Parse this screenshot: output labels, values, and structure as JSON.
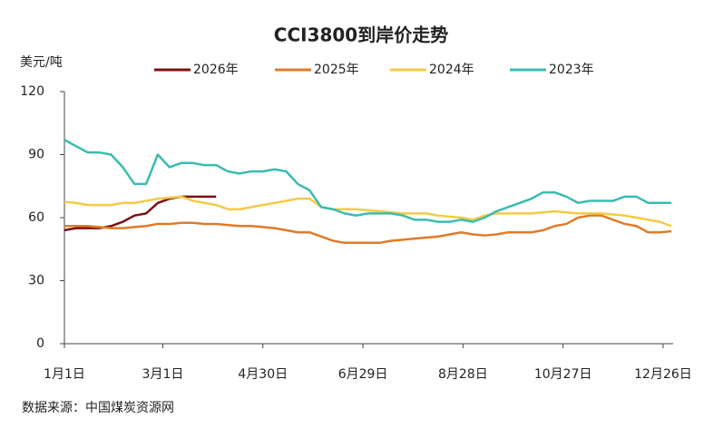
{
  "chart_data": {
    "type": "line",
    "title": "CCI3800到岸价走势",
    "y_label": "美元/吨",
    "source": "数据来源：中国煤炭资源网",
    "x": [
      0,
      7,
      14,
      21,
      28,
      35,
      42,
      49,
      56,
      63,
      70,
      77,
      84,
      91,
      98,
      105,
      112,
      119,
      126,
      133,
      140,
      147,
      154,
      161,
      168,
      175,
      182,
      189,
      196,
      203,
      210,
      217,
      224,
      231,
      238,
      245,
      252,
      259,
      266,
      273,
      280,
      287,
      294,
      301,
      308,
      315,
      322,
      329,
      336,
      343,
      350,
      357,
      364
    ],
    "xlim": [
      0,
      365
    ],
    "xticks": [
      {
        "value": 0,
        "label": "1月1日"
      },
      {
        "value": 59,
        "label": "3月1日"
      },
      {
        "value": 119,
        "label": "4月30日"
      },
      {
        "value": 179,
        "label": "6月29日"
      },
      {
        "value": 239,
        "label": "8月28日"
      },
      {
        "value": 299,
        "label": "10月27日"
      },
      {
        "value": 359,
        "label": "12月26日"
      }
    ],
    "ylim": [
      0,
      120
    ],
    "yticks": [
      0,
      30,
      60,
      90,
      120
    ],
    "grid": false,
    "series": [
      {
        "name": "2026年",
        "color": "#7b1113",
        "values": [
          54,
          55,
          55,
          55,
          56,
          58,
          61,
          62,
          67,
          69,
          70,
          70,
          70,
          70,
          null,
          null,
          null,
          null,
          null,
          null,
          null,
          null,
          null,
          null,
          null,
          null,
          null,
          null,
          null,
          null,
          null,
          null,
          null,
          null,
          null,
          null,
          null,
          null,
          null,
          null,
          null,
          null,
          null,
          null,
          null,
          null,
          null,
          null,
          null,
          null,
          null,
          null,
          null
        ]
      },
      {
        "name": "2025年",
        "color": "#e07b2a",
        "values": [
          56,
          56,
          56,
          55.5,
          55,
          55,
          55.5,
          56,
          57,
          57,
          57.5,
          57.5,
          57,
          57,
          56.5,
          56,
          56,
          55.5,
          55,
          54,
          53,
          53,
          51,
          49,
          48,
          48,
          48,
          48,
          49,
          49.5,
          50,
          50.5,
          51,
          52,
          53,
          52,
          51.5,
          52,
          53,
          53,
          53,
          54,
          56,
          57,
          60,
          61,
          61,
          59,
          57,
          56,
          53,
          53,
          53.5
        ]
      },
      {
        "name": "2024年",
        "color": "#f2cb47",
        "values": [
          67.5,
          67,
          66,
          66,
          66,
          67,
          67,
          68,
          69,
          69.5,
          70,
          68,
          67,
          66,
          64,
          64,
          65,
          66,
          67,
          68,
          69,
          69,
          65,
          64,
          64,
          64,
          63.5,
          63,
          62.5,
          62,
          62,
          62,
          61,
          60.5,
          60,
          59,
          61,
          62,
          62,
          62,
          62,
          62.5,
          63,
          62.5,
          62,
          62,
          62,
          61.5,
          61,
          60,
          59,
          58,
          56
        ]
      },
      {
        "name": "2023年",
        "color": "#3bbcb0",
        "values": [
          97,
          94,
          91,
          91,
          90,
          84,
          76,
          76,
          90,
          84,
          86,
          86,
          85,
          85,
          82,
          81,
          82,
          82,
          83,
          82,
          76,
          73,
          65,
          64,
          62,
          61,
          62,
          62,
          62,
          61,
          59,
          59,
          58,
          58,
          59,
          58,
          60,
          63,
          65,
          67,
          69,
          72,
          72,
          70,
          67,
          68,
          68,
          68,
          70,
          70,
          67,
          67,
          67
        ]
      }
    ]
  }
}
